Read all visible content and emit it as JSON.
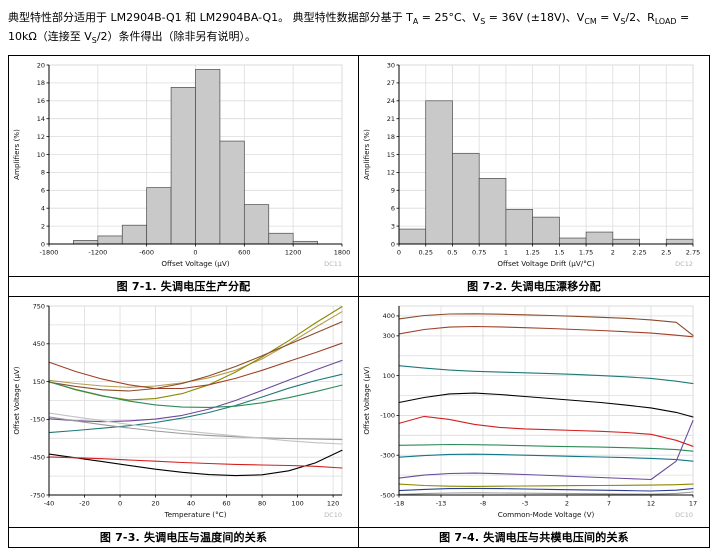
{
  "header": {
    "segments": [
      {
        "text": "典型特性部分适用于 LM2904B-Q1 和 LM2904BA-Q1。 典型特性数据部分基于 T"
      },
      {
        "text": "A",
        "sub": true
      },
      {
        "text": " = 25°C、V"
      },
      {
        "text": "S",
        "sub": true
      },
      {
        "text": " = 36V (±18V)、V"
      },
      {
        "text": "CM",
        "sub": true
      },
      {
        "text": " = V"
      },
      {
        "text": "S",
        "sub": true
      },
      {
        "text": "/2、R"
      },
      {
        "text": "LOAD",
        "sub": true
      },
      {
        "text": " = 10kΩ（连接至 V"
      },
      {
        "text": "S",
        "sub": true
      },
      {
        "text": "/2）条件得出（除非另有说明）。"
      }
    ]
  },
  "chart_data": [
    {
      "type": "bar",
      "title": "图 7-1. 失调电压生产分配",
      "code": "DC11",
      "xlabel": "Offset Voltage (μV)",
      "ylabel": "Amplifiers (%)",
      "xlim": [
        -1800,
        1800
      ],
      "ylim": [
        0,
        20
      ],
      "xticks": [
        -1800,
        -1200,
        -600,
        0,
        600,
        1200,
        1800
      ],
      "yticks": [
        0,
        2,
        4,
        6,
        8,
        10,
        12,
        14,
        16,
        18,
        20
      ],
      "bins_start": -1800,
      "bin_width": 300,
      "values": [
        0,
        0.4,
        0.9,
        2.1,
        6.3,
        17.5,
        19.5,
        11.5,
        4.4,
        1.2,
        0.3,
        0
      ],
      "bar_color": "#c9c9c9",
      "grid": true,
      "legend": "none"
    },
    {
      "type": "bar",
      "title": "图 7-2. 失调电压漂移分配",
      "code": "DC12",
      "xlabel": "Offset Voltage Drift (μV/°C)",
      "ylabel": "Amplifiers (%)",
      "xlim": [
        0,
        2.75
      ],
      "ylim": [
        0,
        30
      ],
      "xticks": [
        0,
        0.25,
        0.5,
        0.75,
        1,
        1.25,
        1.5,
        1.75,
        2,
        2.25,
        2.5,
        2.75
      ],
      "yticks": [
        0,
        3,
        6,
        9,
        12,
        15,
        18,
        21,
        24,
        27,
        30
      ],
      "bins_start": 0,
      "bin_width": 0.25,
      "values": [
        2.5,
        24,
        15.2,
        11,
        5.8,
        4.5,
        1.0,
        2.0,
        0.8,
        0,
        0.8
      ],
      "bar_color": "#c9c9c9",
      "grid": true,
      "legend": "none"
    },
    {
      "type": "line",
      "title": "图 7-3. 失调电压与温度间的关系",
      "code": "DC10",
      "xlabel": "Temperature (°C)",
      "ylabel": "Offset Voltage (μV)",
      "xlim": [
        -40,
        125
      ],
      "ylim": [
        -750,
        750
      ],
      "xticks": [
        -40,
        -20,
        0,
        20,
        40,
        60,
        80,
        100,
        120
      ],
      "yticks": [
        -750,
        -600,
        -450,
        -300,
        -150,
        0,
        150,
        300,
        450,
        600,
        750
      ],
      "ylabels": [
        "-750",
        "",
        "-450",
        "",
        "-150",
        "",
        "150",
        "",
        "450",
        "",
        "750"
      ],
      "x": [
        -40,
        -25,
        -10,
        5,
        20,
        35,
        50,
        65,
        80,
        95,
        110,
        125
      ],
      "series": [
        {
          "name": "unit-1",
          "color": "#b39b4e",
          "values": [
            160,
            135,
            115,
            105,
            115,
            140,
            180,
            240,
            330,
            450,
            580,
            705
          ]
        },
        {
          "name": "unit-2",
          "color": "#8a8a00",
          "values": [
            150,
            85,
            35,
            5,
            15,
            55,
            125,
            225,
            345,
            475,
            615,
            745
          ]
        },
        {
          "name": "unit-3",
          "color": "#8b4a2a",
          "values": [
            145,
            112,
            85,
            75,
            95,
            135,
            195,
            270,
            355,
            445,
            535,
            625
          ]
        },
        {
          "name": "unit-4",
          "color": "#a04028",
          "values": [
            305,
            230,
            170,
            125,
            95,
            95,
            125,
            175,
            240,
            310,
            380,
            455
          ]
        },
        {
          "name": "unit-5",
          "color": "#6a4a9a",
          "values": [
            -145,
            -160,
            -168,
            -162,
            -148,
            -118,
            -68,
            0,
            80,
            162,
            242,
            318
          ]
        },
        {
          "name": "unit-6",
          "color": "#1f7878",
          "values": [
            -255,
            -238,
            -220,
            -200,
            -175,
            -140,
            -95,
            -40,
            28,
            98,
            158,
            208
          ]
        },
        {
          "name": "unit-7",
          "color": "#2e8b57",
          "values": [
            148,
            88,
            38,
            -5,
            -35,
            -52,
            -55,
            -45,
            -18,
            22,
            70,
            122
          ]
        },
        {
          "name": "unit-8",
          "color": "#999999",
          "values": [
            -130,
            -162,
            -192,
            -218,
            -242,
            -262,
            -277,
            -288,
            -296,
            -302,
            -306,
            -310
          ]
        },
        {
          "name": "unit-9",
          "color": "#c2c2c2",
          "values": [
            -100,
            -130,
            -160,
            -190,
            -215,
            -240,
            -260,
            -280,
            -300,
            -320,
            -335,
            -345
          ]
        },
        {
          "name": "unit-10",
          "color": "#000000",
          "values": [
            -425,
            -455,
            -485,
            -515,
            -545,
            -570,
            -588,
            -596,
            -590,
            -558,
            -495,
            -395
          ]
        },
        {
          "name": "unit-11",
          "color": "#d42020",
          "values": [
            -448,
            -455,
            -462,
            -472,
            -482,
            -492,
            -500,
            -507,
            -512,
            -516,
            -522,
            -536
          ]
        }
      ],
      "grid": true,
      "legend": "none"
    },
    {
      "type": "line",
      "title": "图 7-4. 失调电压与共模电压间的关系",
      "code": "DC10",
      "xlabel": "Common-Mode Voltage (V)",
      "ylabel": "Offset Voltage (μV)",
      "xlim": [
        -18,
        17
      ],
      "ylim": [
        -500,
        450
      ],
      "xticks": [
        -18,
        -13,
        -8,
        -3,
        2,
        7,
        12,
        17
      ],
      "yticks": [
        -500,
        -400,
        -300,
        -200,
        -100,
        0,
        100,
        200,
        300,
        400
      ],
      "ylabels": [
        "-500",
        "",
        "-300",
        "",
        "-100",
        "",
        "100",
        "",
        "300",
        "400"
      ],
      "x": [
        -18,
        -15,
        -12,
        -9,
        -6,
        -3,
        0,
        3,
        6,
        9,
        12,
        15,
        17
      ],
      "series": [
        {
          "name": "unit-1",
          "color": "#8b4a2a",
          "values": [
            385,
            402,
            410,
            411,
            409,
            406,
            402,
            398,
            393,
            388,
            380,
            368,
            302
          ]
        },
        {
          "name": "unit-2",
          "color": "#a04028",
          "values": [
            310,
            332,
            344,
            347,
            345,
            341,
            337,
            332,
            327,
            321,
            314,
            303,
            295
          ]
        },
        {
          "name": "unit-3",
          "color": "#1f7878",
          "values": [
            150,
            138,
            128,
            122,
            118,
            114,
            110,
            106,
            100,
            94,
            86,
            72,
            60
          ]
        },
        {
          "name": "unit-4",
          "color": "#000000",
          "values": [
            -35,
            -10,
            8,
            12,
            5,
            -5,
            -15,
            -25,
            -35,
            -48,
            -62,
            -85,
            -108
          ]
        },
        {
          "name": "unit-5",
          "color": "#d42020",
          "values": [
            -140,
            -105,
            -120,
            -145,
            -160,
            -168,
            -172,
            -176,
            -180,
            -186,
            -195,
            -225,
            -255
          ]
        },
        {
          "name": "unit-6",
          "color": "#2e8b57",
          "values": [
            -250,
            -248,
            -246,
            -247,
            -249,
            -252,
            -255,
            -257,
            -259,
            -262,
            -266,
            -272,
            -280
          ]
        },
        {
          "name": "unit-7",
          "color": "#117788",
          "values": [
            -310,
            -302,
            -296,
            -295,
            -297,
            -300,
            -303,
            -306,
            -309,
            -312,
            -316,
            -322,
            -330
          ]
        },
        {
          "name": "unit-8",
          "color": "#6a4a9a",
          "values": [
            -415,
            -400,
            -392,
            -390,
            -393,
            -397,
            -402,
            -407,
            -412,
            -417,
            -422,
            -330,
            -125
          ]
        },
        {
          "name": "unit-9",
          "color": "#8a8a00",
          "values": [
            -445,
            -452,
            -456,
            -457,
            -456,
            -455,
            -454,
            -453,
            -452,
            -451,
            -450,
            -448,
            -445
          ]
        },
        {
          "name": "unit-10",
          "color": "#2a3f8f",
          "values": [
            -478,
            -472,
            -468,
            -467,
            -468,
            -470,
            -472,
            -474,
            -476,
            -478,
            -480,
            -476,
            -468
          ]
        },
        {
          "name": "unit-11",
          "color": "#999999",
          "values": [
            -497,
            -493,
            -490,
            -489,
            -490,
            -491,
            -492,
            -493,
            -494,
            -495,
            -496,
            -492,
            -485
          ]
        }
      ],
      "grid": true,
      "legend": "none"
    }
  ]
}
